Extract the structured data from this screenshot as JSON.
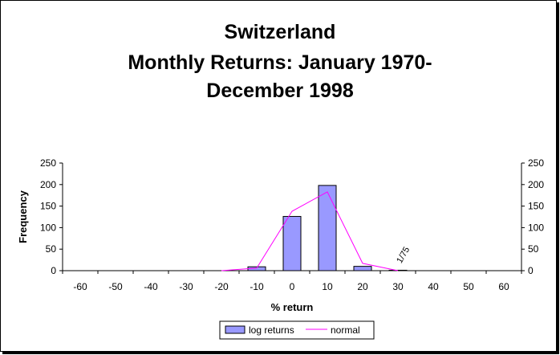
{
  "chart_data": {
    "type": "bar",
    "title": [
      "Switzerland",
      "Monthly Returns: January 1970-",
      "December 1998"
    ],
    "xlabel": "% return",
    "ylabel": "Frequency",
    "x_ticks": [
      -60,
      -50,
      -40,
      -30,
      -20,
      -10,
      0,
      10,
      20,
      30,
      40,
      50,
      60
    ],
    "y_ticks": [
      0,
      50,
      100,
      150,
      200,
      250
    ],
    "ylim": [
      0,
      250
    ],
    "xlim": [
      -65,
      65
    ],
    "y_axis_right": true,
    "grid": false,
    "legend_position": "bottom",
    "series": [
      {
        "name": "log returns",
        "type": "bar",
        "color": "#9999ff",
        "x": [
          -10,
          0,
          10,
          20,
          30
        ],
        "values": [
          9,
          126,
          198,
          10,
          1
        ]
      },
      {
        "name": "normal",
        "type": "line",
        "color": "#ff00ff",
        "x": [
          -20,
          -10,
          0,
          10,
          20,
          30
        ],
        "values": [
          0,
          6,
          138,
          183,
          17,
          0
        ]
      }
    ],
    "annotations": [
      {
        "text": "1/75",
        "x": 30,
        "y": 1
      }
    ]
  }
}
